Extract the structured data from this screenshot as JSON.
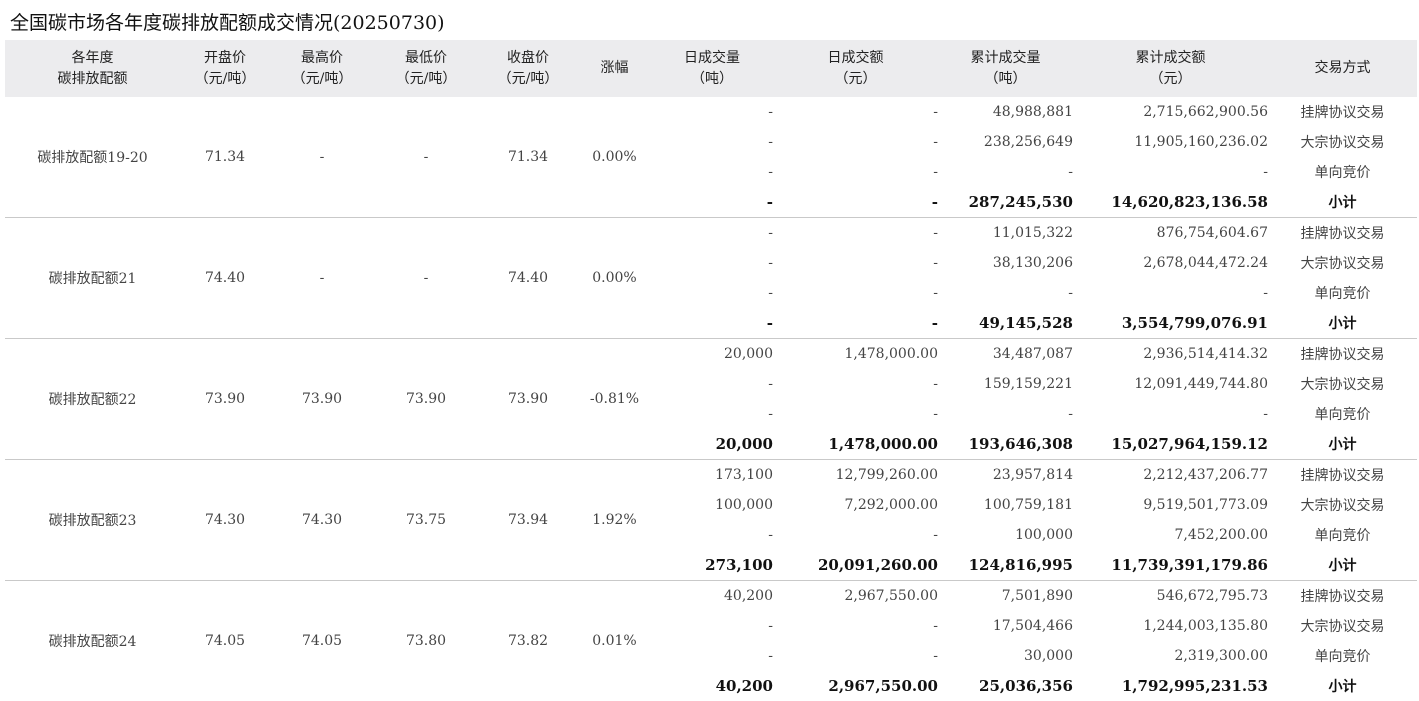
{
  "title": "全国碳市场各年度碳排放配额成交情况(20250730)",
  "headers": [
    [
      "各年度",
      "碳排放配额"
    ],
    [
      "开盘价",
      "（元/吨）"
    ],
    [
      "最高价",
      "（元/吨）"
    ],
    [
      "最低价",
      "（元/吨）"
    ],
    [
      "收盘价",
      "（元/吨）"
    ],
    [
      "涨幅"
    ],
    [
      "日成交量",
      "（吨）"
    ],
    [
      "日成交额",
      "（元）"
    ],
    [
      "累计成交量",
      "（吨）"
    ],
    [
      "累计成交额",
      "（元）"
    ],
    [
      "交易方式"
    ]
  ],
  "groups": [
    {
      "name": "碳排放配额19-20",
      "open": "71.34",
      "high": "-",
      "low": "-",
      "close": "71.34",
      "change": "0.00%",
      "rows": [
        {
          "dv": "-",
          "da": "-",
          "cv": "48,988,881",
          "ca": "2,715,662,900.56",
          "method": "挂牌协议交易"
        },
        {
          "dv": "-",
          "da": "-",
          "cv": "238,256,649",
          "ca": "11,905,160,236.02",
          "method": "大宗协议交易"
        },
        {
          "dv": "-",
          "da": "-",
          "cv": "-",
          "ca": "-",
          "method": "单向竞价"
        },
        {
          "dv": "-",
          "da": "-",
          "cv": "287,245,530",
          "ca": "14,620,823,136.58",
          "method": "小计"
        }
      ]
    },
    {
      "name": "碳排放配额21",
      "open": "74.40",
      "high": "-",
      "low": "-",
      "close": "74.40",
      "change": "0.00%",
      "rows": [
        {
          "dv": "-",
          "da": "-",
          "cv": "11,015,322",
          "ca": "876,754,604.67",
          "method": "挂牌协议交易"
        },
        {
          "dv": "-",
          "da": "-",
          "cv": "38,130,206",
          "ca": "2,678,044,472.24",
          "method": "大宗协议交易"
        },
        {
          "dv": "-",
          "da": "-",
          "cv": "-",
          "ca": "-",
          "method": "单向竞价"
        },
        {
          "dv": "-",
          "da": "-",
          "cv": "49,145,528",
          "ca": "3,554,799,076.91",
          "method": "小计"
        }
      ]
    },
    {
      "name": "碳排放配额22",
      "open": "73.90",
      "high": "73.90",
      "low": "73.90",
      "close": "73.90",
      "change": "-0.81%",
      "rows": [
        {
          "dv": "20,000",
          "da": "1,478,000.00",
          "cv": "34,487,087",
          "ca": "2,936,514,414.32",
          "method": "挂牌协议交易"
        },
        {
          "dv": "-",
          "da": "-",
          "cv": "159,159,221",
          "ca": "12,091,449,744.80",
          "method": "大宗协议交易"
        },
        {
          "dv": "-",
          "da": "-",
          "cv": "-",
          "ca": "-",
          "method": "单向竞价"
        },
        {
          "dv": "20,000",
          "da": "1,478,000.00",
          "cv": "193,646,308",
          "ca": "15,027,964,159.12",
          "method": "小计"
        }
      ]
    },
    {
      "name": "碳排放配额23",
      "open": "74.30",
      "high": "74.30",
      "low": "73.75",
      "close": "73.94",
      "change": "1.92%",
      "rows": [
        {
          "dv": "173,100",
          "da": "12,799,260.00",
          "cv": "23,957,814",
          "ca": "2,212,437,206.77",
          "method": "挂牌协议交易"
        },
        {
          "dv": "100,000",
          "da": "7,292,000.00",
          "cv": "100,759,181",
          "ca": "9,519,501,773.09",
          "method": "大宗协议交易"
        },
        {
          "dv": "-",
          "da": "-",
          "cv": "100,000",
          "ca": "7,452,200.00",
          "method": "单向竞价"
        },
        {
          "dv": "273,100",
          "da": "20,091,260.00",
          "cv": "124,816,995",
          "ca": "11,739,391,179.86",
          "method": "小计"
        }
      ]
    },
    {
      "name": "碳排放配额24",
      "open": "74.05",
      "high": "74.05",
      "low": "73.80",
      "close": "73.82",
      "change": "0.01%",
      "rows": [
        {
          "dv": "40,200",
          "da": "2,967,550.00",
          "cv": "7,501,890",
          "ca": "546,672,795.73",
          "method": "挂牌协议交易"
        },
        {
          "dv": "-",
          "da": "-",
          "cv": "17,504,466",
          "ca": "1,244,003,135.80",
          "method": "大宗协议交易"
        },
        {
          "dv": "-",
          "da": "-",
          "cv": "30,000",
          "ca": "2,319,300.00",
          "method": "单向竞价"
        },
        {
          "dv": "40,200",
          "da": "2,967,550.00",
          "cv": "25,036,356",
          "ca": "1,792,995,231.53",
          "method": "小计"
        }
      ]
    }
  ]
}
